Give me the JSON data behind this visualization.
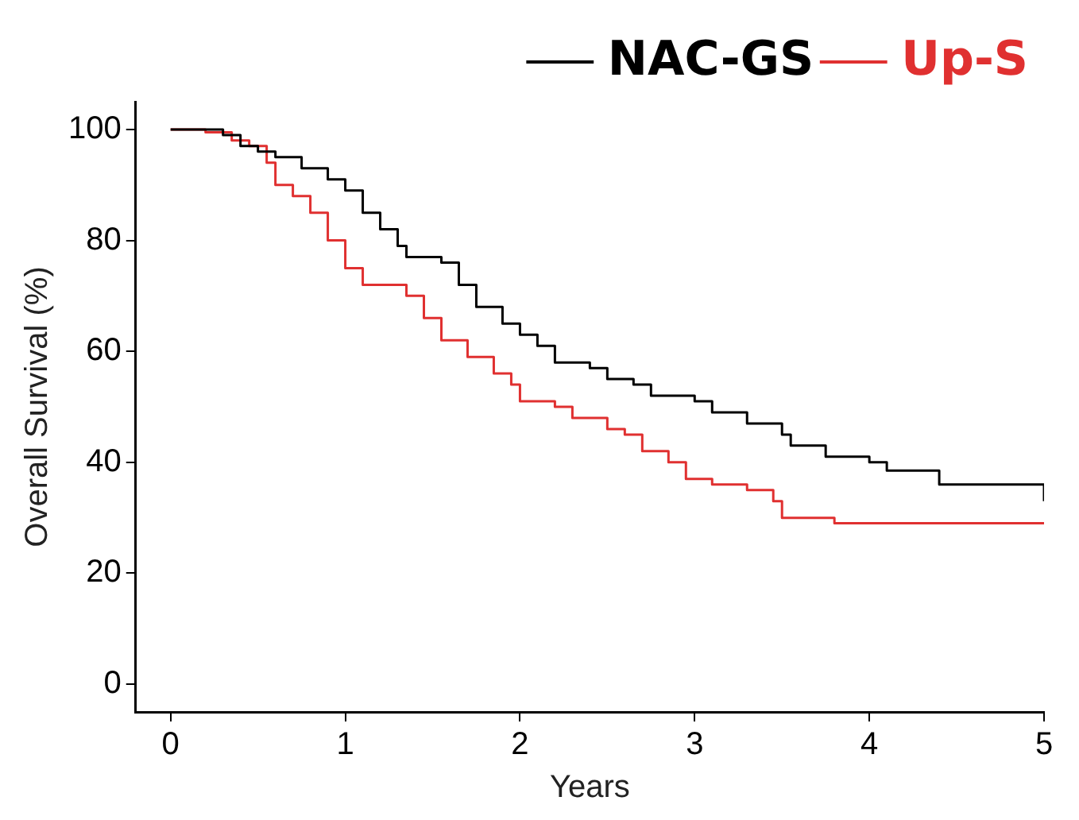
{
  "chart_data": {
    "type": "step",
    "xlabel": "Years",
    "ylabel": "Overall Survival (%)",
    "xlim": [
      -0.2,
      5
    ],
    "xticks": [
      0,
      1,
      2,
      3,
      4,
      5
    ],
    "ylim": [
      -5,
      105
    ],
    "yticks": [
      0,
      20,
      40,
      60,
      80,
      100
    ],
    "grid": false,
    "legend": "top right",
    "marker": "none",
    "line_style": "solid",
    "series": [
      {
        "name": "NAC-GS",
        "color": "#000000",
        "x": [
          0,
          0.3,
          0.4,
          0.5,
          0.6,
          0.75,
          0.9,
          1.0,
          1.1,
          1.2,
          1.3,
          1.35,
          1.55,
          1.65,
          1.75,
          1.9,
          2.0,
          2.1,
          2.2,
          2.4,
          2.5,
          2.65,
          2.75,
          3.0,
          3.1,
          3.3,
          3.5,
          3.55,
          3.75,
          4.0,
          4.1,
          4.4,
          4.95,
          5.0
        ],
        "values": [
          100,
          99,
          97,
          96,
          95,
          93,
          91,
          89,
          85,
          82,
          79,
          77,
          76,
          72,
          68,
          65,
          63,
          61,
          58,
          57,
          55,
          54,
          52,
          51,
          49,
          47,
          45,
          43,
          41,
          40,
          38.5,
          36,
          36,
          33
        ]
      },
      {
        "name": "Up-S",
        "color": "#e03030",
        "x": [
          0,
          0.2,
          0.35,
          0.45,
          0.55,
          0.6,
          0.7,
          0.8,
          0.9,
          1.0,
          1.1,
          1.35,
          1.45,
          1.55,
          1.7,
          1.85,
          1.95,
          2.0,
          2.2,
          2.3,
          2.5,
          2.6,
          2.7,
          2.85,
          2.95,
          3.1,
          3.3,
          3.45,
          3.5,
          3.8,
          5.0
        ],
        "values": [
          100,
          99.5,
          98,
          97,
          94,
          90,
          88,
          85,
          80,
          75,
          72,
          70,
          66,
          62,
          59,
          56,
          54,
          51,
          50,
          48,
          46,
          45,
          42,
          40,
          37,
          36,
          35,
          33,
          30,
          29,
          29
        ]
      }
    ]
  }
}
